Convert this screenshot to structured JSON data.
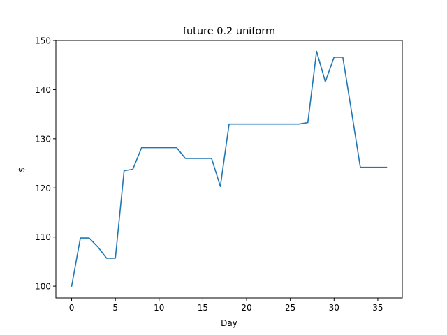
{
  "chart_data": {
    "type": "line",
    "title": "future 0.2 uniform",
    "xlabel": "Day",
    "ylabel": "$",
    "xlim": [
      -1.8,
      37.8
    ],
    "ylim": [
      97.6,
      150.0
    ],
    "xticks": [
      0,
      5,
      10,
      15,
      20,
      25,
      30,
      35
    ],
    "yticks": [
      100,
      110,
      120,
      130,
      140,
      150
    ],
    "grid": false,
    "series": [
      {
        "color": "#1f77b4",
        "x": [
          0,
          1,
          2,
          3,
          4,
          5,
          6,
          7,
          8,
          9,
          10,
          11,
          12,
          13,
          14,
          15,
          16,
          17,
          18,
          19,
          20,
          21,
          22,
          23,
          24,
          25,
          26,
          27,
          28,
          29,
          30,
          31,
          32,
          33,
          34,
          35,
          36
        ],
        "y": [
          100.0,
          109.8,
          109.8,
          108.0,
          105.7,
          105.7,
          123.5,
          123.8,
          128.2,
          128.2,
          128.2,
          128.2,
          128.2,
          126.0,
          126.0,
          126.0,
          126.0,
          120.3,
          133.0,
          133.0,
          133.0,
          133.0,
          133.0,
          133.0,
          133.0,
          133.0,
          133.0,
          133.3,
          147.8,
          141.6,
          146.6,
          146.6,
          135.5,
          124.2,
          124.2,
          124.2,
          124.2
        ]
      }
    ]
  }
}
